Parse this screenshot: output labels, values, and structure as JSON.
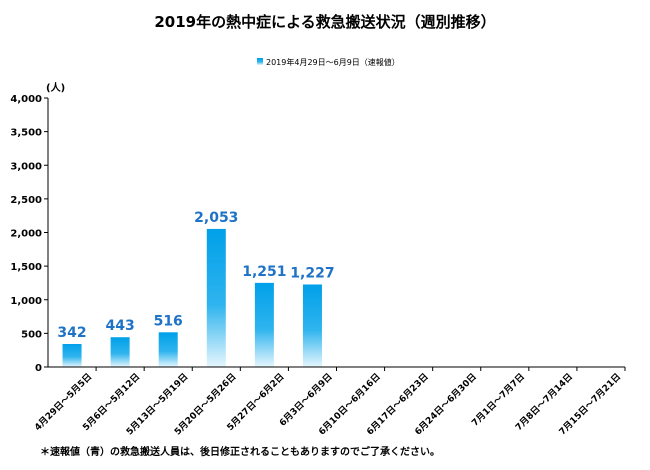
{
  "chart_data": {
    "type": "bar",
    "title": "2019年の熱中症による救急搬送状況（週別推移）",
    "legend": [
      "2019年4月29日～6月9日（速報値）"
    ],
    "legend_position": "top-center",
    "ylabel": "(人)",
    "xlabel": "",
    "ylim": [
      0,
      4000
    ],
    "yticks": [
      0,
      500,
      1000,
      1500,
      2000,
      2500,
      3000,
      3500,
      4000
    ],
    "ytick_labels": [
      "0",
      "500",
      "1,000",
      "1,500",
      "2,000",
      "2,500",
      "3,000",
      "3,500",
      "4,000"
    ],
    "grid": false,
    "categories": [
      "4月29日～5月5日",
      "5月6日～5月12日",
      "5月13日～5月19日",
      "5月20日～5月26日",
      "5月27日～6月2日",
      "6月3日～6月9日",
      "6月10日～6月16日",
      "6月17日～6月23日",
      "6月24日～6月30日",
      "7月1日～7月7日",
      "7月8日～7月14日",
      "7月15日～7月21日"
    ],
    "series": [
      {
        "name": "2019年4月29日～6月9日（速報値）",
        "values": [
          342,
          443,
          516,
          2053,
          1251,
          1227,
          null,
          null,
          null,
          null,
          null,
          null
        ],
        "value_labels": [
          "342",
          "443",
          "516",
          "2,053",
          "1,251",
          "1,227"
        ]
      }
    ],
    "footnote": "＊速報値（青）の救急搬送人員は、後日修正されることもありますのでご了承ください。"
  },
  "colors": {
    "bar_top": "#00a0e9",
    "bar_bottom": "#e6f6fd",
    "value_label": "#1f73c6",
    "axis": "#000000"
  }
}
